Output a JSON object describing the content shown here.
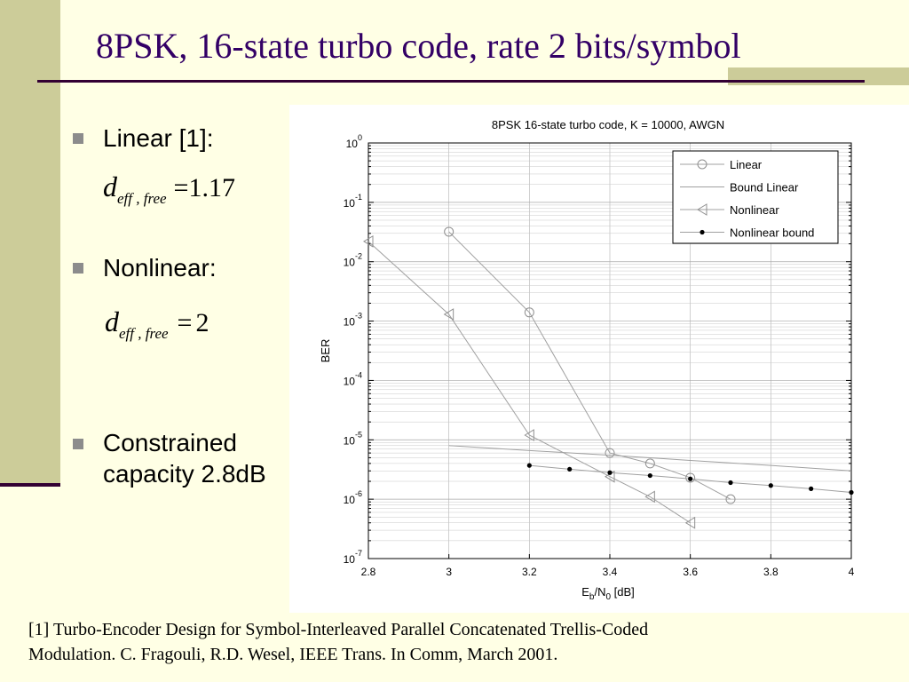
{
  "slide": {
    "title": "8PSK, 16-state turbo code, rate 2 bits/symbol",
    "bullets": [
      {
        "text": "Linear [1]:"
      },
      {
        "text": "Nonlinear:"
      },
      {
        "text": "Constrained capacity 2.8dB",
        "line1": "Constrained",
        "line2": "capacity 2.8dB"
      }
    ],
    "formulas": [
      {
        "symbol": "d",
        "subscript": "eff , free",
        "equals": "=",
        "value": "1.17"
      },
      {
        "symbol": "d",
        "subscript": "eff , free",
        "equals": "=",
        "value": "2"
      }
    ],
    "footnote": {
      "line1": "[1] Turbo-Encoder Design for Symbol-Interleaved Parallel Concatenated Trellis-Coded",
      "line2": "Modulation.  C. Fragouli, R.D. Wesel, IEEE Trans. In Comm, March 2001."
    }
  },
  "colors": {
    "background": "#FFFFE5",
    "accent_bar": "#CCCC99",
    "rule": "#330033",
    "title_text": "#330066",
    "bullet": "#8C8C8C"
  },
  "chart_data": {
    "type": "line",
    "title": "8PSK 16-state turbo code, K = 10000, AWGN",
    "xlabel": "Eb/N0 [dB]",
    "xlabel_parts": {
      "main": "E",
      "sub1": "b",
      "mid": "/N",
      "sub2": "0",
      "unit": " [dB]"
    },
    "ylabel": "BER",
    "xlim": [
      2.8,
      4.0
    ],
    "ylim": [
      1e-07,
      1
    ],
    "yscale": "log",
    "grid": true,
    "legend_position": "top-right",
    "xticks": [
      2.8,
      3.0,
      3.2,
      3.4,
      3.6,
      3.8,
      4.0
    ],
    "xtick_labels": [
      "2.8",
      "3",
      "3.2",
      "3.4",
      "3.6",
      "3.8",
      "4"
    ],
    "yticks": [
      {
        "exp": 0,
        "base": "10",
        "sup": "0"
      },
      {
        "exp": -1,
        "base": "10",
        "sup": "-1"
      },
      {
        "exp": -2,
        "base": "10",
        "sup": "-2"
      },
      {
        "exp": -3,
        "base": "10",
        "sup": "-3"
      },
      {
        "exp": -4,
        "base": "10",
        "sup": "-4"
      },
      {
        "exp": -5,
        "base": "10",
        "sup": "-5"
      },
      {
        "exp": -6,
        "base": "10",
        "sup": "-6"
      },
      {
        "exp": -7,
        "base": "10",
        "sup": "-7"
      }
    ],
    "series": [
      {
        "name": "Linear",
        "marker": "circle",
        "line": true,
        "x": [
          3.0,
          3.2,
          3.4,
          3.5,
          3.6,
          3.7
        ],
        "y": [
          0.032,
          0.0014,
          6e-06,
          4e-06,
          2.3e-06,
          1e-06
        ]
      },
      {
        "name": "Bound Linear",
        "marker": "none",
        "line": true,
        "x": [
          3.0,
          3.2,
          3.4,
          3.6,
          3.8,
          4.0
        ],
        "y": [
          8e-06,
          6.6e-06,
          5.5e-06,
          4.5e-06,
          3.7e-06,
          3e-06
        ]
      },
      {
        "name": "Nonlinear",
        "marker": "triangle-left",
        "line": true,
        "x": [
          2.8,
          3.0,
          3.2,
          3.4,
          3.5,
          3.6
        ],
        "y": [
          0.022,
          0.0013,
          1.2e-05,
          2.4e-06,
          1.1e-06,
          4e-07
        ]
      },
      {
        "name": "Nonlinear bound",
        "marker": "dot",
        "line": true,
        "x": [
          3.2,
          3.3,
          3.4,
          3.5,
          3.6,
          3.7,
          3.8,
          3.9,
          4.0
        ],
        "y": [
          3.7e-06,
          3.2e-06,
          2.8e-06,
          2.5e-06,
          2.2e-06,
          1.9e-06,
          1.7e-06,
          1.5e-06,
          1.3e-06
        ]
      }
    ]
  }
}
